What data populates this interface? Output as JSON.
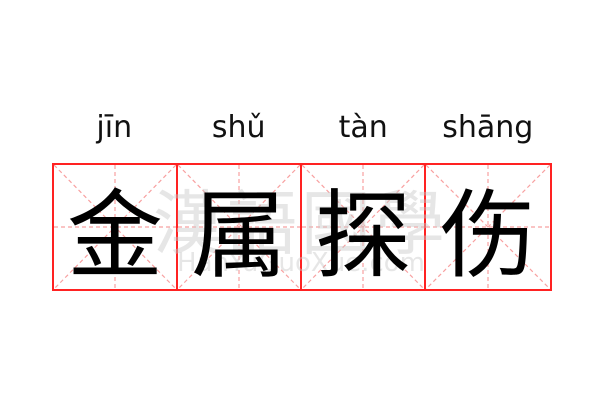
{
  "pinyin": [
    "jīn",
    "shǔ",
    "tàn",
    "shāng"
  ],
  "characters": [
    "金",
    "属",
    "探",
    "伤"
  ],
  "watermark": {
    "chinese": "漢語國學",
    "latin": "HanYuGuoXue.com"
  },
  "colors": {
    "grid_border": "#ff2222",
    "grid_guides": "#f8a0a0",
    "text": "#000000"
  }
}
